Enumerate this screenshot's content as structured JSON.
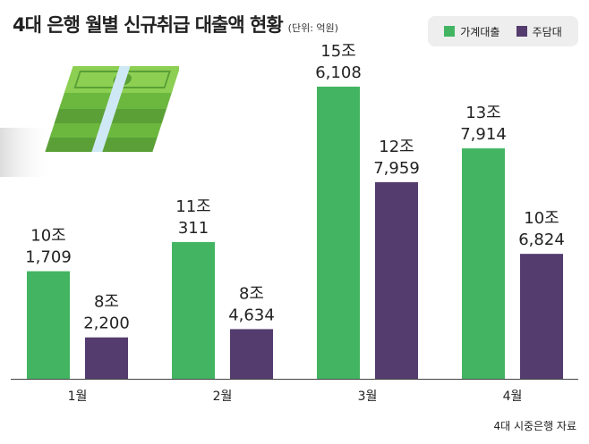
{
  "title": "4대 은행 월별 신규취급 대출액 현황",
  "unit": "(단위: 억원)",
  "source": "4대 시중은행 자료",
  "colors": {
    "household": "#43b562",
    "mortgage": "#543c6f",
    "axis": "#444444"
  },
  "chart_data": {
    "type": "bar",
    "categories": [
      "1월",
      "2월",
      "3월",
      "4월"
    ],
    "series": [
      {
        "name": "가계대출",
        "values": [
          101709,
          110311,
          156108,
          137914
        ],
        "labels": [
          [
            "10조",
            "1,709"
          ],
          [
            "11조",
            "311"
          ],
          [
            "15조",
            "6,108"
          ],
          [
            "13조",
            "7,914"
          ]
        ]
      },
      {
        "name": "주담대",
        "values": [
          82200,
          84634,
          127959,
          106824
        ],
        "labels": [
          [
            "8조",
            "2,200"
          ],
          [
            "8조",
            "4,634"
          ],
          [
            "12조",
            "7,959"
          ],
          [
            "10조",
            "6,824"
          ]
        ]
      }
    ],
    "legend_position": "top-right",
    "grid": false
  }
}
